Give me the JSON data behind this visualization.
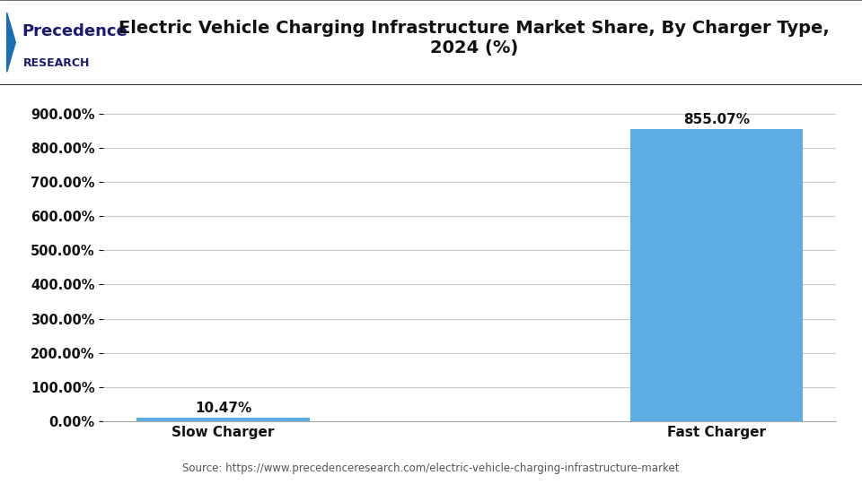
{
  "title": "Electric Vehicle Charging Infrastructure Market Share, By Charger Type,\n2024 (%)",
  "categories": [
    "Slow Charger",
    "Fast Charger"
  ],
  "values": [
    10.47,
    855.07
  ],
  "bar_color": "#5DADE2",
  "bar_width": 0.35,
  "yticks": [
    0,
    100,
    200,
    300,
    400,
    500,
    600,
    700,
    800,
    900
  ],
  "ylim": [
    0,
    950
  ],
  "label_fontsize": 11,
  "title_fontsize": 14,
  "tick_fontsize": 11,
  "source_text": "Source: https://www.precedenceresearch.com/electric-vehicle-charging-infrastructure-market",
  "background_color": "#ffffff",
  "grid_color": "#cccccc",
  "value_labels": [
    "10.47%",
    "855.07%"
  ],
  "logo_text_top": "Precedence",
  "logo_text_bottom": "RESEARCH"
}
